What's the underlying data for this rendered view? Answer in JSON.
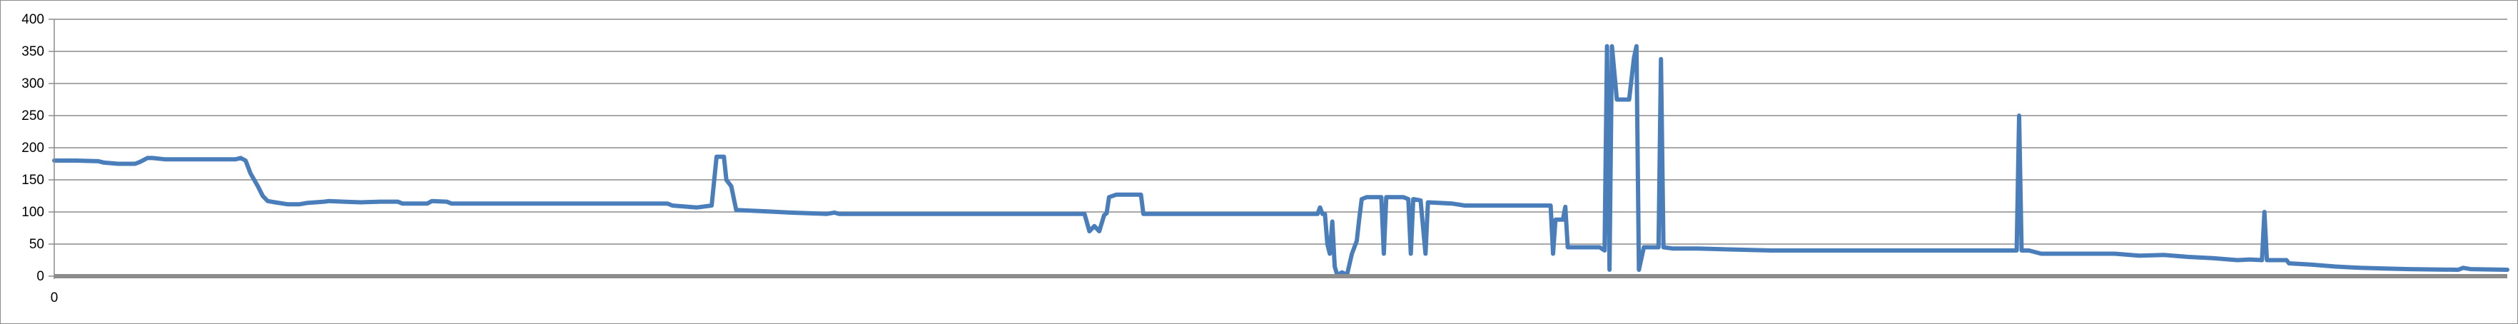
{
  "chart_data": {
    "type": "line",
    "title": "",
    "xlabel": "",
    "ylabel": "",
    "ylim": [
      0,
      400
    ],
    "y_ticks": [
      "0",
      "50",
      "100",
      "150",
      "200",
      "250",
      "300",
      "350",
      "400"
    ],
    "x_ticks": [
      "0"
    ],
    "x_domain": [
      0,
      1000
    ],
    "grid": true,
    "legend": "none",
    "colors": {
      "line": "#4a7ebb",
      "grid": "#8c8c8c",
      "axis": "#8c8c8c",
      "text": "#000000"
    },
    "series": [
      {
        "values": [
          [
            0,
            180
          ],
          [
            9,
            180
          ],
          [
            18,
            179
          ],
          [
            20,
            177
          ],
          [
            26,
            175
          ],
          [
            33,
            175
          ],
          [
            35,
            178
          ],
          [
            38,
            184
          ],
          [
            40,
            184
          ],
          [
            45,
            182
          ],
          [
            55,
            182
          ],
          [
            65,
            182
          ],
          [
            74,
            182
          ],
          [
            76,
            184
          ],
          [
            78,
            180
          ],
          [
            80,
            160
          ],
          [
            83,
            140
          ],
          [
            85,
            125
          ],
          [
            87,
            117
          ],
          [
            90,
            115
          ],
          [
            95,
            112
          ],
          [
            100,
            112
          ],
          [
            103,
            114
          ],
          [
            110,
            116
          ],
          [
            112,
            117
          ],
          [
            118,
            116
          ],
          [
            125,
            115
          ],
          [
            133,
            116
          ],
          [
            140,
            116
          ],
          [
            142,
            113
          ],
          [
            152,
            113
          ],
          [
            154,
            117
          ],
          [
            160,
            116
          ],
          [
            162,
            113
          ],
          [
            200,
            113
          ],
          [
            250,
            113
          ],
          [
            252,
            110
          ],
          [
            262,
            107
          ],
          [
            268,
            110
          ],
          [
            270,
            186
          ],
          [
            273,
            186
          ],
          [
            274,
            150
          ],
          [
            276,
            140
          ],
          [
            278,
            103
          ],
          [
            290,
            101
          ],
          [
            300,
            99
          ],
          [
            315,
            97
          ],
          [
            318,
            99
          ],
          [
            320,
            97
          ],
          [
            380,
            97
          ],
          [
            420,
            97
          ],
          [
            422,
            70
          ],
          [
            424,
            78
          ],
          [
            426,
            70
          ],
          [
            428,
            95
          ],
          [
            429,
            98
          ],
          [
            430,
            123
          ],
          [
            433,
            127
          ],
          [
            443,
            127
          ],
          [
            444,
            97
          ],
          [
            500,
            97
          ],
          [
            515,
            97
          ],
          [
            516,
            107
          ],
          [
            517,
            97
          ],
          [
            518,
            97
          ],
          [
            519,
            50
          ],
          [
            520,
            35
          ],
          [
            521,
            85
          ],
          [
            522,
            15
          ],
          [
            523,
            2
          ],
          [
            525,
            6
          ],
          [
            527,
            2
          ],
          [
            529,
            35
          ],
          [
            531,
            55
          ],
          [
            532,
            90
          ],
          [
            533,
            120
          ],
          [
            535,
            123
          ],
          [
            541,
            123
          ],
          [
            542,
            35
          ],
          [
            543,
            123
          ],
          [
            550,
            123
          ],
          [
            552,
            120
          ],
          [
            553,
            35
          ],
          [
            554,
            120
          ],
          [
            557,
            118
          ],
          [
            559,
            35
          ],
          [
            560,
            115
          ],
          [
            570,
            113
          ],
          [
            575,
            110
          ],
          [
            610,
            110
          ],
          [
            611,
            35
          ],
          [
            612,
            88
          ],
          [
            615,
            88
          ],
          [
            616,
            108
          ],
          [
            617,
            45
          ],
          [
            620,
            45
          ],
          [
            630,
            45
          ],
          [
            632,
            40
          ],
          [
            633,
            358
          ],
          [
            634,
            10
          ],
          [
            635,
            358
          ],
          [
            637,
            275
          ],
          [
            642,
            275
          ],
          [
            644,
            340
          ],
          [
            645,
            358
          ],
          [
            646,
            10
          ],
          [
            648,
            45
          ],
          [
            654,
            45
          ],
          [
            655,
            338
          ],
          [
            656,
            45
          ],
          [
            660,
            43
          ],
          [
            670,
            43
          ],
          [
            700,
            40
          ],
          [
            780,
            40
          ],
          [
            800,
            40
          ],
          [
            801,
            250
          ],
          [
            802,
            40
          ],
          [
            805,
            40
          ],
          [
            810,
            35
          ],
          [
            830,
            35
          ],
          [
            840,
            35
          ],
          [
            850,
            32
          ],
          [
            860,
            33
          ],
          [
            870,
            30
          ],
          [
            880,
            28
          ],
          [
            890,
            25
          ],
          [
            895,
            26
          ],
          [
            900,
            25
          ],
          [
            901,
            100
          ],
          [
            902,
            25
          ],
          [
            910,
            25
          ],
          [
            911,
            20
          ],
          [
            920,
            18
          ],
          [
            930,
            15
          ],
          [
            940,
            13
          ],
          [
            950,
            12
          ],
          [
            960,
            11
          ],
          [
            980,
            10
          ],
          [
            982,
            13
          ],
          [
            985,
            11
          ],
          [
            1000,
            10
          ]
        ]
      }
    ]
  }
}
